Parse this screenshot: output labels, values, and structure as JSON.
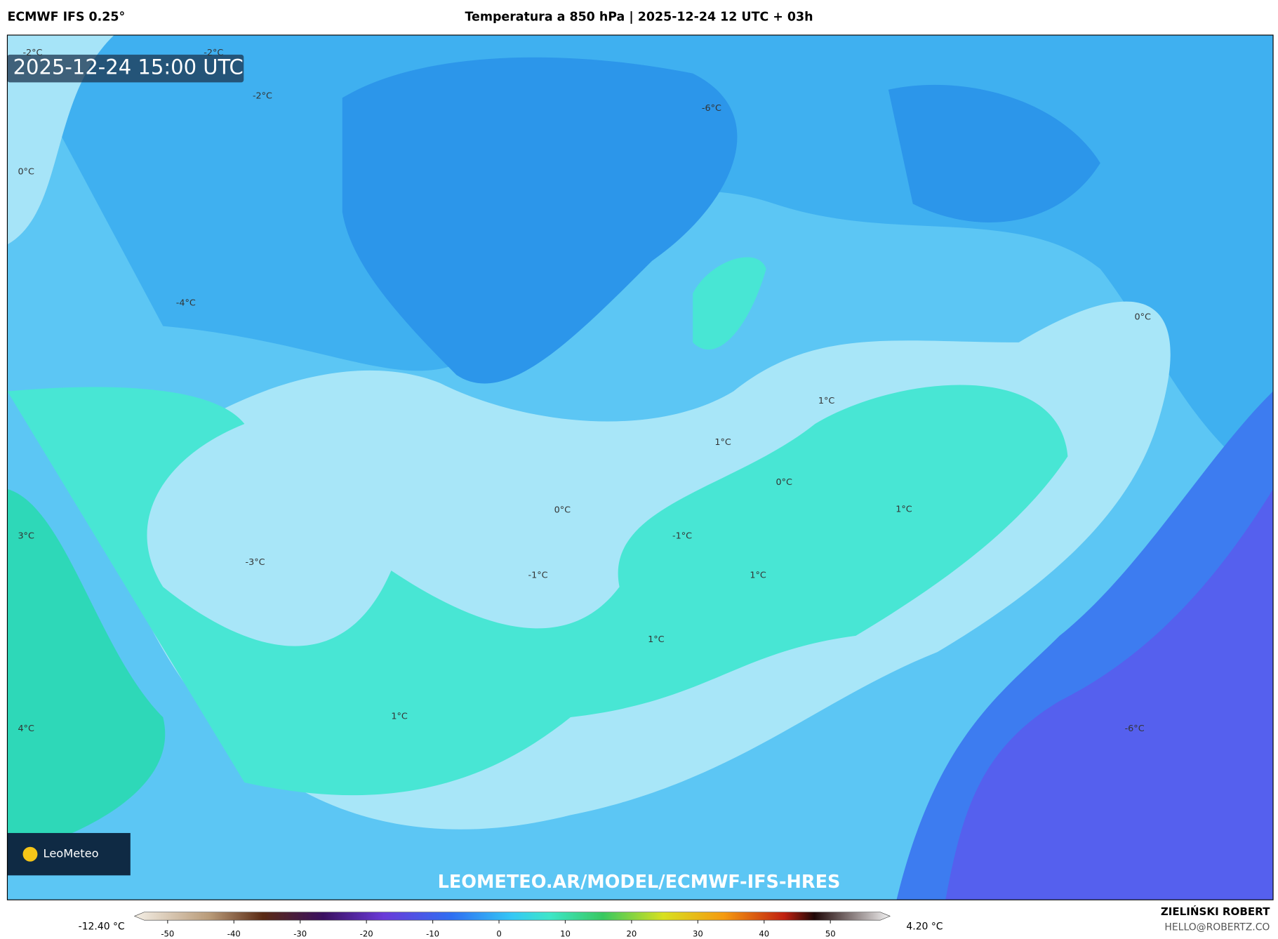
{
  "header": {
    "model": "ECMWF IFS 0.25°",
    "title": "Temperatura a 850 hPa | 2025-12-24 12 UTC + 03h"
  },
  "map": {
    "timestamp": "2025-12-24 15:00 UTC",
    "url": "LEOMETEO.AR/MODEL/ECMWF-IFS-HRES",
    "logo": "LeoMeteo",
    "contour_labels": [
      "-2°C",
      "-2°C",
      "-2°C",
      "0°C",
      "-4°C",
      "3°C",
      "-3°C",
      "4°C",
      "-6°C",
      "0°C",
      "-1°C",
      "-1°C",
      "1°C",
      "1°C",
      "0°C",
      "1°C",
      "1°C",
      "1°C",
      "1°C",
      "-6°C",
      "0°C"
    ]
  },
  "colorbar": {
    "min_label": "-12.40 °C",
    "max_label": "4.20 °C",
    "lim": [
      -55,
      59
    ],
    "ticks": [
      -50,
      -40,
      -30,
      -20,
      -10,
      0,
      10,
      20,
      30,
      40,
      50
    ]
  },
  "footer": {
    "author": "ZIELIŃSKI ROBERT",
    "email": "HELLO@ROBERTZ.CO"
  }
}
